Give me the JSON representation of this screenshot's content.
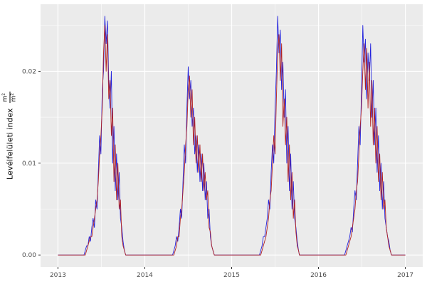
{
  "chart_data": {
    "type": "line",
    "title": "",
    "xlabel": "",
    "ylabel": "Levélfelületi index",
    "ylabel_fraction": {
      "numerator": "m²",
      "denominator": "m²"
    },
    "legend": "none",
    "grid": true,
    "panel_background": "#EBEBEB",
    "grid_color": "#FFFFFF",
    "tick_label_color": "#4D4D4D",
    "tick_mark_color": "#333333",
    "xlim": [
      2012.8,
      2017.2
    ],
    "ylim": [
      -0.0013,
      0.0273
    ],
    "x_ticks": [
      2013,
      2014,
      2015,
      2016,
      2017
    ],
    "x_tick_labels": [
      "2013",
      "2014",
      "2015",
      "2016",
      "2017"
    ],
    "x_minor_ticks": [
      2013.5,
      2014.5,
      2015.5,
      2016.5
    ],
    "y_ticks": [
      0,
      0.01,
      0.02
    ],
    "y_tick_labels": [
      "0.00",
      "0.01",
      "0.02"
    ],
    "y_minor_ticks": [
      0.005,
      0.015,
      0.025
    ],
    "x": [
      2013.0,
      2013.3,
      2013.315,
      2013.33,
      2013.345,
      2013.36,
      2013.375,
      2013.39,
      2013.405,
      2013.42,
      2013.435,
      2013.45,
      2013.465,
      2013.48,
      2013.495,
      2013.51,
      2013.525,
      2013.54,
      2013.555,
      2013.57,
      2013.585,
      2013.6,
      2013.615,
      2013.63,
      2013.645,
      2013.66,
      2013.675,
      2013.69,
      2013.705,
      2013.72,
      2013.735,
      2013.75,
      2013.765,
      2013.78,
      2014.32,
      2014.335,
      2014.35,
      2014.365,
      2014.38,
      2014.395,
      2014.41,
      2014.425,
      2014.44,
      2014.455,
      2014.47,
      2014.485,
      2014.5,
      2014.515,
      2014.53,
      2014.545,
      2014.56,
      2014.575,
      2014.59,
      2014.605,
      2014.62,
      2014.635,
      2014.65,
      2014.665,
      2014.68,
      2014.695,
      2014.71,
      2014.725,
      2014.74,
      2014.755,
      2014.77,
      2014.785,
      2014.8,
      2015.32,
      2015.335,
      2015.35,
      2015.365,
      2015.38,
      2015.395,
      2015.41,
      2015.425,
      2015.44,
      2015.455,
      2015.47,
      2015.485,
      2015.5,
      2015.515,
      2015.53,
      2015.545,
      2015.56,
      2015.575,
      2015.59,
      2015.605,
      2015.62,
      2015.635,
      2015.65,
      2015.665,
      2015.68,
      2015.695,
      2015.71,
      2015.725,
      2015.74,
      2015.755,
      2015.77,
      2015.78,
      2016.3,
      2016.315,
      2016.33,
      2016.345,
      2016.36,
      2016.375,
      2016.39,
      2016.405,
      2016.42,
      2016.435,
      2016.45,
      2016.465,
      2016.48,
      2016.495,
      2016.51,
      2016.525,
      2016.54,
      2016.555,
      2016.57,
      2016.585,
      2016.6,
      2016.615,
      2016.63,
      2016.645,
      2016.66,
      2016.675,
      2016.69,
      2016.705,
      2016.72,
      2016.735,
      2016.75,
      2016.765,
      2016.78,
      2016.795,
      2016.81,
      2016.825,
      2016.84,
      2017.0
    ],
    "series": [
      {
        "name": "series-blue",
        "color": "#2222DD",
        "values": [
          0,
          0,
          0.0005,
          0.001,
          0.001,
          0.002,
          0.0015,
          0.003,
          0.004,
          0.003,
          0.006,
          0.005,
          0.009,
          0.013,
          0.011,
          0.018,
          0.02,
          0.026,
          0.023,
          0.0255,
          0.019,
          0.016,
          0.02,
          0.01,
          0.014,
          0.007,
          0.011,
          0.006,
          0.009,
          0.004,
          0.003,
          0.0015,
          0.0005,
          0,
          0,
          0.0005,
          0.001,
          0.002,
          0.0015,
          0.003,
          0.005,
          0.004,
          0.008,
          0.012,
          0.01,
          0.016,
          0.0205,
          0.017,
          0.019,
          0.014,
          0.016,
          0.011,
          0.013,
          0.009,
          0.012,
          0.008,
          0.011,
          0.007,
          0.01,
          0.006,
          0.008,
          0.004,
          0.005,
          0.002,
          0.001,
          0.0005,
          0,
          0,
          0.0005,
          0.001,
          0.002,
          0.002,
          0.003,
          0.004,
          0.006,
          0.005,
          0.009,
          0.012,
          0.01,
          0.016,
          0.02,
          0.026,
          0.022,
          0.0245,
          0.018,
          0.021,
          0.015,
          0.018,
          0.01,
          0.014,
          0.007,
          0.011,
          0.005,
          0.008,
          0.004,
          0.003,
          0.0015,
          0.0005,
          0,
          0,
          0.0005,
          0.001,
          0.0015,
          0.002,
          0.003,
          0.0025,
          0.005,
          0.007,
          0.006,
          0.01,
          0.014,
          0.012,
          0.018,
          0.025,
          0.021,
          0.0235,
          0.017,
          0.022,
          0.019,
          0.023,
          0.015,
          0.019,
          0.012,
          0.016,
          0.009,
          0.013,
          0.007,
          0.01,
          0.005,
          0.008,
          0.004,
          0.003,
          0.002,
          0.0015,
          0.0005,
          0,
          0
        ]
      },
      {
        "name": "series-red",
        "color": "#B22222",
        "values": [
          0,
          0,
          0,
          0.0005,
          0.001,
          0.0015,
          0.002,
          0.002,
          0.003,
          0.004,
          0.005,
          0.006,
          0.008,
          0.011,
          0.013,
          0.016,
          0.022,
          0.025,
          0.02,
          0.024,
          0.017,
          0.019,
          0.013,
          0.016,
          0.008,
          0.012,
          0.006,
          0.01,
          0.005,
          0.006,
          0.002,
          0.001,
          0.0005,
          0,
          0,
          0,
          0.0005,
          0.001,
          0.002,
          0.002,
          0.004,
          0.005,
          0.007,
          0.009,
          0.012,
          0.014,
          0.018,
          0.0195,
          0.015,
          0.018,
          0.012,
          0.015,
          0.01,
          0.013,
          0.009,
          0.012,
          0.008,
          0.011,
          0.007,
          0.009,
          0.006,
          0.007,
          0.003,
          0.0025,
          0.001,
          0.0005,
          0,
          0,
          0,
          0.0005,
          0.001,
          0.0015,
          0.002,
          0.003,
          0.004,
          0.006,
          0.007,
          0.01,
          0.013,
          0.011,
          0.017,
          0.022,
          0.024,
          0.019,
          0.023,
          0.014,
          0.017,
          0.012,
          0.015,
          0.008,
          0.012,
          0.006,
          0.009,
          0.004,
          0.006,
          0.0025,
          0.001,
          0.0005,
          0,
          0,
          0,
          0.0005,
          0.001,
          0.0015,
          0.002,
          0.003,
          0.004,
          0.005,
          0.007,
          0.008,
          0.011,
          0.014,
          0.016,
          0.02,
          0.023,
          0.018,
          0.0225,
          0.016,
          0.021,
          0.014,
          0.019,
          0.012,
          0.016,
          0.01,
          0.014,
          0.008,
          0.011,
          0.006,
          0.009,
          0.005,
          0.006,
          0.003,
          0.002,
          0.001,
          0.0005,
          0,
          0
        ]
      }
    ]
  }
}
